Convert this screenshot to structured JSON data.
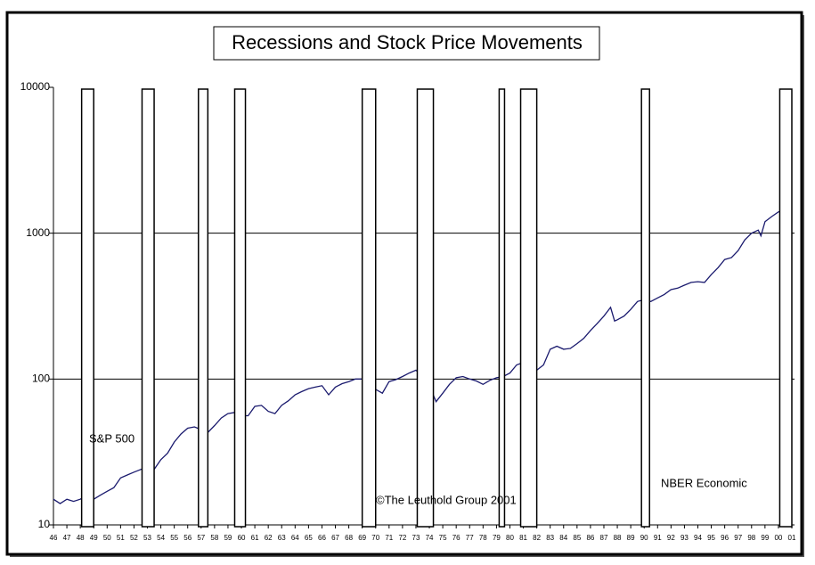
{
  "chart_data": {
    "type": "line",
    "title": "Recessions and Stock Price Movements",
    "yscale": "log",
    "ylim": [
      10,
      10000
    ],
    "yticks": [
      10,
      100,
      1000,
      10000
    ],
    "grid": true,
    "xlim": [
      1946,
      2001
    ],
    "xticks": [
      {
        "value": 1946,
        "label": "46"
      },
      {
        "value": 1947,
        "label": "47"
      },
      {
        "value": 1948,
        "label": "48"
      },
      {
        "value": 1949,
        "label": "49"
      },
      {
        "value": 1950,
        "label": "50"
      },
      {
        "value": 1951,
        "label": "51"
      },
      {
        "value": 1952,
        "label": "52"
      },
      {
        "value": 1953,
        "label": "53"
      },
      {
        "value": 1954,
        "label": "54"
      },
      {
        "value": 1955,
        "label": "55"
      },
      {
        "value": 1956,
        "label": "56"
      },
      {
        "value": 1957,
        "label": "57"
      },
      {
        "value": 1958,
        "label": "58"
      },
      {
        "value": 1959,
        "label": "59"
      },
      {
        "value": 1960,
        "label": "60"
      },
      {
        "value": 1961,
        "label": "61"
      },
      {
        "value": 1962,
        "label": "62"
      },
      {
        "value": 1963,
        "label": "63"
      },
      {
        "value": 1964,
        "label": "64"
      },
      {
        "value": 1965,
        "label": "65"
      },
      {
        "value": 1966,
        "label": "66"
      },
      {
        "value": 1967,
        "label": "67"
      },
      {
        "value": 1968,
        "label": "68"
      },
      {
        "value": 1969,
        "label": "69"
      },
      {
        "value": 1970,
        "label": "70"
      },
      {
        "value": 1971,
        "label": "71"
      },
      {
        "value": 1972,
        "label": "72"
      },
      {
        "value": 1973,
        "label": "73"
      },
      {
        "value": 1974,
        "label": "74"
      },
      {
        "value": 1975,
        "label": "75"
      },
      {
        "value": 1976,
        "label": "76"
      },
      {
        "value": 1977,
        "label": "77"
      },
      {
        "value": 1978,
        "label": "78"
      },
      {
        "value": 1979,
        "label": "79"
      },
      {
        "value": 1980,
        "label": "80"
      },
      {
        "value": 1981,
        "label": "81"
      },
      {
        "value": 1982,
        "label": "82"
      },
      {
        "value": 1983,
        "label": "83"
      },
      {
        "value": 1984,
        "label": "84"
      },
      {
        "value": 1985,
        "label": "85"
      },
      {
        "value": 1986,
        "label": "86"
      },
      {
        "value": 1987,
        "label": "87"
      },
      {
        "value": 1988,
        "label": "88"
      },
      {
        "value": 1989,
        "label": "89"
      },
      {
        "value": 1990,
        "label": "90"
      },
      {
        "value": 1991,
        "label": "91"
      },
      {
        "value": 1992,
        "label": "92"
      },
      {
        "value": 1993,
        "label": "93"
      },
      {
        "value": 1994,
        "label": "94"
      },
      {
        "value": 1995,
        "label": "95"
      },
      {
        "value": 1996,
        "label": "96"
      },
      {
        "value": 1997,
        "label": "97"
      },
      {
        "value": 1998,
        "label": "98"
      },
      {
        "value": 1999,
        "label": "99"
      },
      {
        "value": 2000,
        "label": "00"
      },
      {
        "value": 2001,
        "label": "01"
      }
    ],
    "series": [
      {
        "name": "S&P 500",
        "color": "#1a1a6e",
        "x": [
          1946,
          1946.5,
          1947,
          1947.5,
          1948,
          1948.5,
          1949,
          1949.5,
          1950,
          1950.5,
          1951,
          1951.5,
          1952,
          1952.5,
          1953,
          1953.5,
          1954,
          1954.5,
          1955,
          1955.5,
          1956,
          1956.5,
          1957,
          1957.5,
          1958,
          1958.5,
          1959,
          1959.5,
          1960,
          1960.5,
          1961,
          1961.5,
          1962,
          1962.5,
          1963,
          1963.5,
          1964,
          1964.5,
          1965,
          1965.5,
          1966,
          1966.5,
          1967,
          1967.5,
          1968,
          1968.5,
          1969,
          1969.5,
          1970,
          1970.5,
          1971,
          1971.5,
          1972,
          1972.5,
          1973,
          1973.5,
          1974,
          1974.5,
          1975,
          1975.5,
          1976,
          1976.5,
          1977,
          1977.5,
          1978,
          1978.5,
          1979,
          1979.5,
          1980,
          1980.5,
          1981,
          1981.5,
          1982,
          1982.5,
          1983,
          1983.5,
          1984,
          1984.5,
          1985,
          1985.5,
          1986,
          1986.5,
          1987,
          1987.5,
          1987.8,
          1988,
          1988.5,
          1989,
          1989.5,
          1990,
          1990.5,
          1991,
          1991.5,
          1992,
          1992.5,
          1993,
          1993.5,
          1994,
          1994.5,
          1995,
          1995.5,
          1996,
          1996.5,
          1997,
          1997.5,
          1998,
          1998.5,
          1998.7,
          1999,
          1999.5,
          2000,
          2000.5,
          2000.9
        ],
        "values": [
          15,
          14,
          15,
          14.5,
          15,
          16,
          15,
          16,
          17,
          18,
          21,
          22,
          23,
          24,
          25,
          24,
          28,
          31,
          37,
          42,
          46,
          47,
          45,
          43,
          48,
          54,
          58,
          59,
          56,
          56,
          65,
          66,
          60,
          58,
          66,
          71,
          78,
          82,
          86,
          88,
          90,
          78,
          88,
          93,
          96,
          100,
          100,
          93,
          85,
          80,
          96,
          99,
          104,
          110,
          115,
          104,
          90,
          70,
          80,
          92,
          102,
          104,
          100,
          97,
          92,
          98,
          102,
          104,
          110,
          125,
          130,
          120,
          115,
          125,
          160,
          168,
          160,
          162,
          175,
          190,
          215,
          240,
          270,
          310,
          250,
          255,
          270,
          300,
          340,
          350,
          340,
          360,
          380,
          410,
          420,
          440,
          460,
          465,
          460,
          520,
          580,
          660,
          680,
          760,
          900,
          1000,
          1050,
          960,
          1200,
          1300,
          1400,
          1450,
          1420
        ]
      }
    ],
    "recessions": {
      "label": "NBER Economic",
      "start": [
        1948.1,
        1952.6,
        1956.8,
        1959.5,
        1969.0,
        1973.1,
        1979.2,
        1980.8,
        1989.8,
        2000.1
      ],
      "end": [
        1949.0,
        1953.5,
        1957.5,
        1960.3,
        1970.0,
        1974.3,
        1979.6,
        1982.0,
        1990.4,
        2001.0
      ]
    },
    "annotations": [
      "©The Leuthold Group 2001"
    ]
  }
}
